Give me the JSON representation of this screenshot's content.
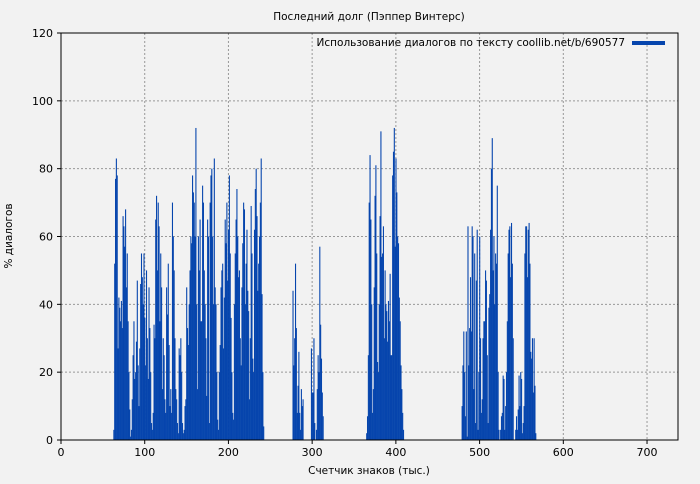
{
  "chart_data": {
    "type": "bar",
    "title": "Последний долг (Пэппер Винтерс)",
    "xlabel": "Счетчик знаков (тыс.)",
    "ylabel": "% диалогов",
    "xlim": [
      0,
      737
    ],
    "ylim": [
      0,
      120
    ],
    "xticks": [
      "0",
      "100",
      "200",
      "300",
      "400",
      "500",
      "600",
      "700"
    ],
    "yticks": [
      "0",
      "20",
      "40",
      "60",
      "80",
      "100",
      "120"
    ],
    "grid": true,
    "legend_position": "top-right",
    "series": [
      {
        "name": "Использование диалогов по тексту coollib.net/b/690577",
        "color": "#0645ad",
        "x_step": 1,
        "segments": [
          {
            "x_start": 63,
            "values": [
              3,
              52,
              77,
              83,
              78,
              27,
              42,
              39,
              35,
              41,
              33,
              66,
              63,
              57,
              68,
              45,
              55,
              35,
              20,
              9,
              1,
              3,
              12,
              25,
              35,
              18,
              20,
              29,
              47,
              22,
              10,
              27,
              46,
              55,
              48,
              40,
              55,
              36,
              22,
              50,
              30,
              18,
              45,
              33,
              20,
              5,
              3,
              8,
              34,
              30,
              65,
              72,
              50,
              70,
              63,
              35,
              55,
              45,
              15,
              30,
              25,
              12,
              8,
              45,
              37,
              52,
              28,
              10,
              15,
              8,
              70,
              60,
              50,
              30,
              15,
              12,
              5,
              2,
              27,
              25,
              30,
              20,
              5,
              2,
              3,
              10,
              12,
              45,
              33,
              28,
              40,
              50,
              60,
              58,
              78,
              73,
              70,
              60,
              92,
              40,
              15,
              60,
              50,
              65,
              35,
              35,
              75,
              70,
              50,
              40,
              30,
              13,
              65,
              60,
              5,
              70,
              78,
              80,
              60,
              40,
              83,
              45,
              40,
              20,
              6,
              3,
              20,
              28,
              45,
              50,
              52,
              27,
              42,
              65,
              58,
              70,
              47,
              62,
              78,
              55,
              36,
              20,
              8,
              6,
              40,
              55,
              65,
              74,
              60,
              48,
              50,
              30,
              22,
              45,
              58,
              70,
              68,
              40,
              52,
              62,
              44,
              38,
              12,
              30,
              69,
              55,
              24,
              20,
              62,
              74,
              80,
              66,
              44,
              52,
              60,
              70,
              83,
              43,
              20,
              4
            ]
          },
          {
            "x_start": 277,
            "values": [
              44,
              22,
              30,
              52,
              33,
              8,
              16,
              26,
              8,
              3,
              15,
              10,
              12,
              0,
              0,
              0,
              0,
              0,
              0,
              0,
              0,
              0,
              27,
              14,
              14,
              30,
              5,
              0,
              3,
              15,
              25,
              20,
              57,
              34,
              24,
              14,
              7
            ]
          },
          {
            "x_start": 365,
            "values": [
              2,
              7,
              25,
              70,
              84,
              65,
              40,
              8,
              15,
              45,
              72,
              81,
              55,
              23,
              20,
              40,
              66,
              91,
              54,
              55,
              63,
              30,
              50,
              40,
              38,
              29,
              41,
              35,
              49,
              25,
              25,
              78,
              85,
              92,
              57,
              83,
              73,
              60,
              58,
              42,
              35,
              22,
              15,
              8,
              3
            ]
          },
          {
            "x_start": 479,
            "values": [
              10,
              22,
              32,
              20,
              7,
              32,
              1,
              63,
              22,
              33,
              48,
              32,
              63,
              60,
              15,
              55,
              5,
              47,
              62,
              3,
              20,
              60,
              30,
              8,
              12,
              30,
              35,
              35,
              50,
              47,
              25,
              5,
              39,
              43,
              62,
              80,
              89,
              50,
              60,
              40,
              55,
              52,
              75,
              20,
              3,
              0,
              3,
              7,
              8,
              19,
              18,
              3,
              10,
              20,
              35,
              55,
              62,
              63,
              48,
              64,
              52,
              30
            ]
          },
          {
            "x_start": 543,
            "values": [
              3,
              7,
              3,
              9,
              19,
              10,
              20,
              18,
              2,
              5,
              10,
              55,
              63,
              63,
              48,
              62,
              64,
              52,
              26,
              24,
              30,
              14,
              30,
              16,
              2
            ]
          }
        ]
      }
    ]
  }
}
